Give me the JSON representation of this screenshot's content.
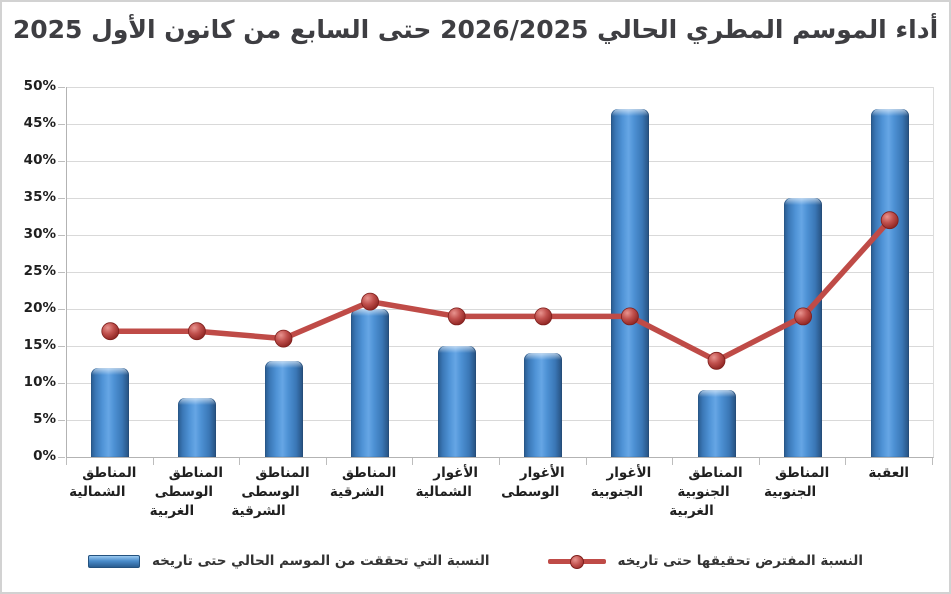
{
  "title": {
    "text": "أداء الموسم المطري الحالي 2026/2025 حتى السابع من كانون الأول 2025"
  },
  "legend": {
    "items": [
      {
        "label": "النسبة التي تحققت من الموسم الحالي حتى تاريخه",
        "marker": "blue-3d-bar-swatch",
        "color": "#3c7cc0"
      },
      {
        "label": "النسبة المفترض تحقيقها حتى تاريخه",
        "marker": "red-line-with-sphere-marker-swatch",
        "color": "#bf4b47"
      }
    ]
  },
  "chart_data": {
    "type": "bar",
    "subtype": "combo-bar-and-line",
    "title": "أداء الموسم المطري الحالي 2026/2025 حتى السابع من كانون الأول 2025",
    "categories": [
      "المناطق الشمالية",
      "المناطق الوسطى الغربية",
      "المناطق الوسطى الشرقية",
      "المناطق الشرقية",
      "الأغوار الشمالية",
      "الأغوار الوسطى",
      "الأغوار الجنوبية",
      "المناطق الجنوبية الغربية",
      "المناطق الجنوبية",
      "العقبة"
    ],
    "category_lines": [
      [
        "المناطق",
        "الشمالية"
      ],
      [
        "المناطق",
        "الوسطى",
        "الغربية"
      ],
      [
        "المناطق",
        "الوسطى",
        "الشرقية"
      ],
      [
        "المناطق",
        "الشرقية"
      ],
      [
        "الأغوار",
        "الشمالية"
      ],
      [
        "الأغوار",
        "الوسطى"
      ],
      [
        "الأغوار",
        "الجنوبية"
      ],
      [
        "المناطق",
        "الجنوبية",
        "الغربية"
      ],
      [
        "المناطق",
        "الجنوبية"
      ],
      [
        "العقبة"
      ]
    ],
    "series": [
      {
        "name": "النسبة التي تحققت من الموسم الحالي حتى تاريخه",
        "type": "bar",
        "color": "#3c7cc0",
        "values": [
          12,
          8,
          13,
          20,
          15,
          14,
          47,
          9,
          35,
          47
        ]
      },
      {
        "name": "النسبة المفترض تحقيقها حتى تاريخه",
        "type": "line",
        "color": "#bf4b47",
        "marker_color": "#c0504d",
        "values": [
          17,
          17,
          16,
          21,
          19,
          19,
          19,
          13,
          19,
          32
        ]
      }
    ],
    "xlabel": "",
    "ylabel": "",
    "ylim": [
      0,
      50
    ],
    "yticks": [
      0,
      5,
      10,
      15,
      20,
      25,
      30,
      35,
      40,
      45,
      50
    ],
    "ytick_labels": [
      "0%",
      "5%",
      "10%",
      "15%",
      "20%",
      "25%",
      "30%",
      "35%",
      "40%",
      "45%",
      "50%"
    ],
    "grid": true,
    "legend_position": "bottom"
  },
  "colors": {
    "bar_main": "#3c7cc0",
    "line": "#bf4b47",
    "gridline": "#d9d9d9",
    "axis": "#b3b3b3",
    "title_text": "#3e3e42",
    "tick_text": "#1f1f1f",
    "background": "#ffffff"
  }
}
